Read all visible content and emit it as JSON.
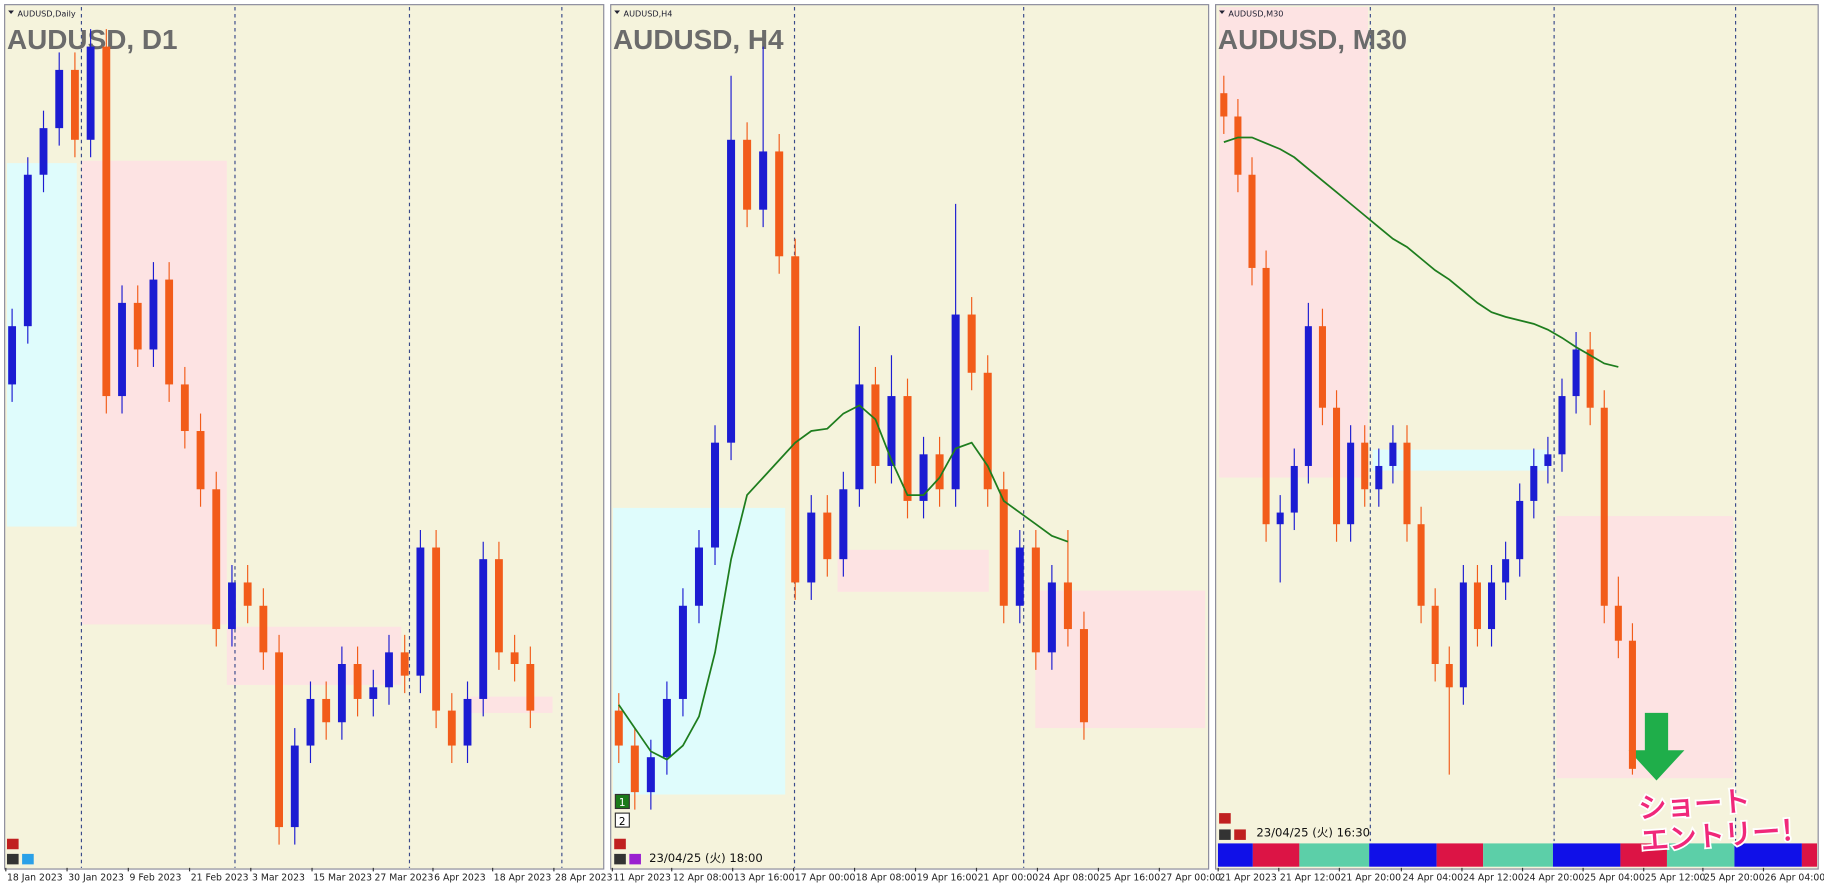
{
  "chart_data": [
    {
      "type": "candlestick",
      "window_label": "AUDUSD,Daily",
      "title": "AUDUSD, D1",
      "up_color": "#1c1cd2",
      "down_color": "#f25c1a",
      "xlim": [
        -0.4,
        37.6
      ],
      "ylim": [
        5,
        745
      ],
      "xticks": [
        {
          "value": -0.4,
          "label": "18 Jan 2023"
        },
        {
          "value": 3.5,
          "label": "30 Jan 2023"
        },
        {
          "value": 7.4,
          "label": "9 Feb 2023"
        },
        {
          "value": 11.3,
          "label": "21 Feb 2023"
        },
        {
          "value": 15.2,
          "label": "3 Mar 2023"
        },
        {
          "value": 19.1,
          "label": "15 Mar 2023"
        },
        {
          "value": 23.0,
          "label": "27 Mar 2023"
        },
        {
          "value": 26.8,
          "label": "6 Apr 2023"
        },
        {
          "value": 30.6,
          "label": "18 Apr 2023"
        },
        {
          "value": 34.5,
          "label": "28 Apr 2023"
        }
      ],
      "ohlc": [
        [
          420,
          485,
          405,
          470
        ],
        [
          470,
          615,
          455,
          600
        ],
        [
          600,
          655,
          585,
          640
        ],
        [
          640,
          705,
          625,
          690
        ],
        [
          690,
          705,
          615,
          630
        ],
        [
          630,
          725,
          615,
          710
        ],
        [
          710,
          725,
          395,
          410
        ],
        [
          410,
          505,
          395,
          490
        ],
        [
          490,
          505,
          435,
          450
        ],
        [
          450,
          525,
          435,
          510
        ],
        [
          510,
          525,
          405,
          420
        ],
        [
          420,
          435,
          365,
          380
        ],
        [
          380,
          395,
          315,
          330
        ],
        [
          330,
          345,
          195,
          210
        ],
        [
          210,
          265,
          195,
          250
        ],
        [
          250,
          265,
          215,
          230
        ],
        [
          230,
          245,
          175,
          190
        ],
        [
          190,
          205,
          25,
          40
        ],
        [
          40,
          125,
          25,
          110
        ],
        [
          110,
          165,
          95,
          150
        ],
        [
          150,
          165,
          115,
          130
        ],
        [
          130,
          195,
          115,
          180
        ],
        [
          180,
          195,
          135,
          150
        ],
        [
          150,
          175,
          135,
          160
        ],
        [
          160,
          205,
          145,
          190
        ],
        [
          190,
          205,
          155,
          170
        ],
        [
          170,
          295,
          155,
          280
        ],
        [
          280,
          295,
          125,
          140
        ],
        [
          140,
          155,
          95,
          110
        ],
        [
          110,
          165,
          95,
          150
        ],
        [
          150,
          285,
          135,
          270
        ],
        [
          270,
          285,
          175,
          190
        ],
        [
          190,
          205,
          165,
          180
        ],
        [
          180,
          195,
          125,
          140
        ]
      ]
    },
    {
      "type": "candlestick",
      "window_label": "AUDUSD,H4",
      "title": "AUDUSD, H4",
      "timestamp": "23/04/25 (火) 18:00",
      "badges": [
        "1",
        "2"
      ],
      "up_color": "#1c1cd2",
      "down_color": "#f25c1a",
      "ma_color": "#1e7d1e",
      "xlim": [
        -0.43,
        36.7
      ],
      "ylim": [
        5,
        745
      ],
      "xticks": [
        {
          "value": -0.4,
          "label": "11 Apr 2023"
        },
        {
          "value": 3.3,
          "label": "12 Apr 08:00"
        },
        {
          "value": 7.1,
          "label": "13 Apr 16:00"
        },
        {
          "value": 10.9,
          "label": "17 Apr 00:00"
        },
        {
          "value": 14.7,
          "label": "18 Apr 08:00"
        },
        {
          "value": 18.5,
          "label": "19 Apr 16:00"
        },
        {
          "value": 22.3,
          "label": "21 Apr 00:00"
        },
        {
          "value": 26.1,
          "label": "24 Apr 08:00"
        },
        {
          "value": 29.9,
          "label": "25 Apr 16:00"
        },
        {
          "value": 33.7,
          "label": "27 Apr 00:00"
        }
      ],
      "ohlc": [
        [
          140,
          155,
          95,
          110
        ],
        [
          110,
          125,
          55,
          70
        ],
        [
          70,
          115,
          55,
          100
        ],
        [
          100,
          165,
          85,
          150
        ],
        [
          150,
          245,
          135,
          230
        ],
        [
          230,
          295,
          215,
          280
        ],
        [
          280,
          385,
          265,
          370
        ],
        [
          370,
          685,
          355,
          630
        ],
        [
          630,
          645,
          555,
          570
        ],
        [
          570,
          710,
          555,
          620
        ],
        [
          620,
          635,
          515,
          530
        ],
        [
          530,
          545,
          235,
          250
        ],
        [
          250,
          325,
          235,
          310
        ],
        [
          310,
          325,
          255,
          270
        ],
        [
          270,
          345,
          255,
          330
        ],
        [
          330,
          470,
          315,
          420
        ],
        [
          420,
          435,
          335,
          350
        ],
        [
          350,
          445,
          335,
          410
        ],
        [
          410,
          425,
          305,
          320
        ],
        [
          320,
          375,
          305,
          360
        ],
        [
          360,
          375,
          315,
          330
        ],
        [
          330,
          575,
          315,
          480
        ],
        [
          480,
          495,
          415,
          430
        ],
        [
          430,
          445,
          315,
          330
        ],
        [
          330,
          345,
          215,
          230
        ],
        [
          230,
          295,
          215,
          280
        ],
        [
          280,
          295,
          175,
          190
        ],
        [
          190,
          265,
          175,
          250
        ],
        [
          250,
          295,
          195,
          210
        ],
        [
          210,
          225,
          115,
          130
        ]
      ],
      "ma": [
        145,
        125,
        105,
        98,
        110,
        135,
        190,
        270,
        325,
        340,
        355,
        370,
        380,
        382,
        395,
        402,
        390,
        355,
        325,
        325,
        340,
        365,
        370,
        350,
        320,
        310,
        300,
        290,
        285,
        null
      ]
    },
    {
      "type": "candlestick",
      "window_label": "AUDUSD,M30",
      "title": "AUDUSD, M30",
      "timestamp": "23/04/25 (火) 16:30",
      "annotation": [
        "ショート",
        "エントリー！"
      ],
      "up_color": "#1c1cd2",
      "down_color": "#f25c1a",
      "ma_color": "#1e7d1e",
      "xlim": [
        -0.5,
        42.1
      ],
      "ylim": [
        5,
        745
      ],
      "xticks": [
        {
          "value": -0.4,
          "label": "21 Apr 2023"
        },
        {
          "value": 3.9,
          "label": "21 Apr 12:00"
        },
        {
          "value": 8.2,
          "label": "21 Apr 20:00"
        },
        {
          "value": 12.6,
          "label": "24 Apr 04:00"
        },
        {
          "value": 16.9,
          "label": "24 Apr 12:00"
        },
        {
          "value": 21.2,
          "label": "24 Apr 20:00"
        },
        {
          "value": 25.5,
          "label": "25 Apr 04:00"
        },
        {
          "value": 29.8,
          "label": "25 Apr 12:00"
        },
        {
          "value": 34.0,
          "label": "25 Apr 20:00"
        },
        {
          "value": 38.3,
          "label": "26 Apr 04:00"
        }
      ],
      "ohlc": [
        [
          670,
          685,
          635,
          650
        ],
        [
          650,
          665,
          585,
          600
        ],
        [
          600,
          615,
          505,
          520
        ],
        [
          520,
          535,
          285,
          300
        ],
        [
          300,
          325,
          250,
          310
        ],
        [
          310,
          365,
          295,
          350
        ],
        [
          350,
          490,
          335,
          470
        ],
        [
          470,
          485,
          385,
          400
        ],
        [
          400,
          415,
          285,
          300
        ],
        [
          300,
          385,
          285,
          370
        ],
        [
          370,
          385,
          315,
          330
        ],
        [
          330,
          365,
          315,
          350
        ],
        [
          350,
          385,
          335,
          370
        ],
        [
          370,
          385,
          285,
          300
        ],
        [
          300,
          315,
          215,
          230
        ],
        [
          230,
          245,
          165,
          180
        ],
        [
          180,
          195,
          85,
          160
        ],
        [
          160,
          265,
          145,
          250
        ],
        [
          250,
          265,
          195,
          210
        ],
        [
          210,
          265,
          195,
          250
        ],
        [
          250,
          285,
          235,
          270
        ],
        [
          270,
          335,
          255,
          320
        ],
        [
          320,
          365,
          305,
          350
        ],
        [
          350,
          375,
          335,
          360
        ],
        [
          360,
          425,
          345,
          410
        ],
        [
          410,
          465,
          395,
          450
        ],
        [
          450,
          465,
          385,
          400
        ],
        [
          400,
          415,
          215,
          230
        ],
        [
          230,
          255,
          185,
          200
        ],
        [
          200,
          215,
          85,
          90
        ]
      ],
      "ma": [
        628,
        632,
        632,
        627,
        622,
        615,
        605,
        595,
        585,
        575,
        565,
        555,
        545,
        538,
        528,
        518,
        510,
        500,
        490,
        482,
        478,
        475,
        472,
        467,
        460,
        452,
        445,
        438,
        435,
        null
      ]
    }
  ]
}
